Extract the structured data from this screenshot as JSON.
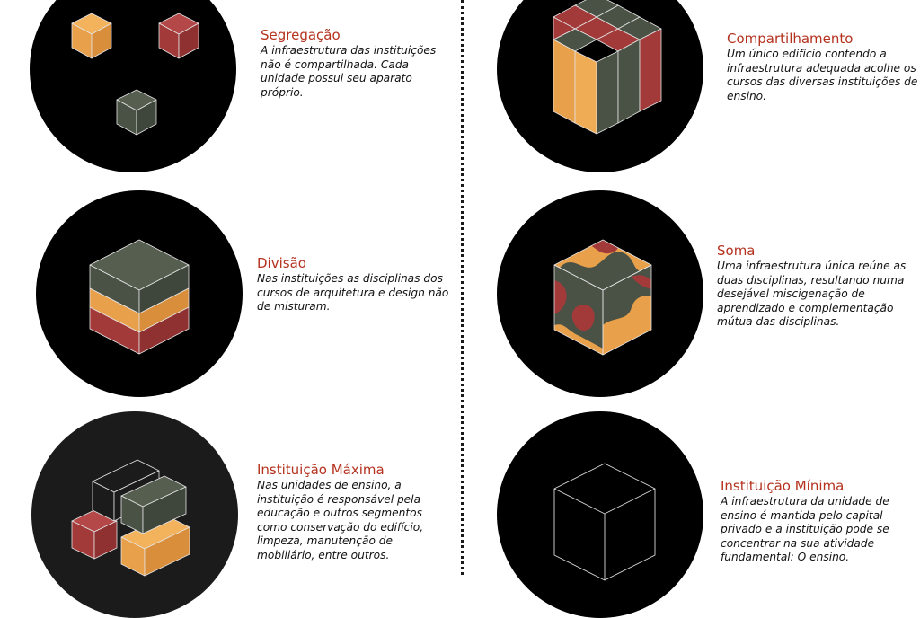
{
  "colors": {
    "orange": "#e8a04a",
    "red": "#a33a3a",
    "green": "#4a5245",
    "title": "#b5321f"
  },
  "items": [
    {
      "title": "Segregação",
      "text": "A infraestrutura das instituições não é compartilhada. Cada unidade possui seu aparato próprio."
    },
    {
      "title": "Compartilhamento",
      "text": "Um único edifício contendo a infraestrutura adequada acolhe os cursos das diversas instituições de ensino."
    },
    {
      "title": "Divisão",
      "text": "Nas instituições as disciplinas dos cursos de arquitetura e design não de misturam."
    },
    {
      "title": "Soma",
      "text": "Uma infraestrutura única reúne as duas disciplinas, resultando numa desejável miscigenação de aprendizado e complementação mútua das disciplinas."
    },
    {
      "title": "Instituição Máxima",
      "text": "Nas unidades de ensino, a instituição é responsável pela educação e outros segmentos como conservação do edifício, limpeza, manutenção de mobiliário, entre outros."
    },
    {
      "title": "Instituição Mínima",
      "text": "A infraestrutura da unidade de ensino é mantida pelo capital privado e a instituição pode se concentrar na sua atividade fundamental: O ensino."
    }
  ]
}
